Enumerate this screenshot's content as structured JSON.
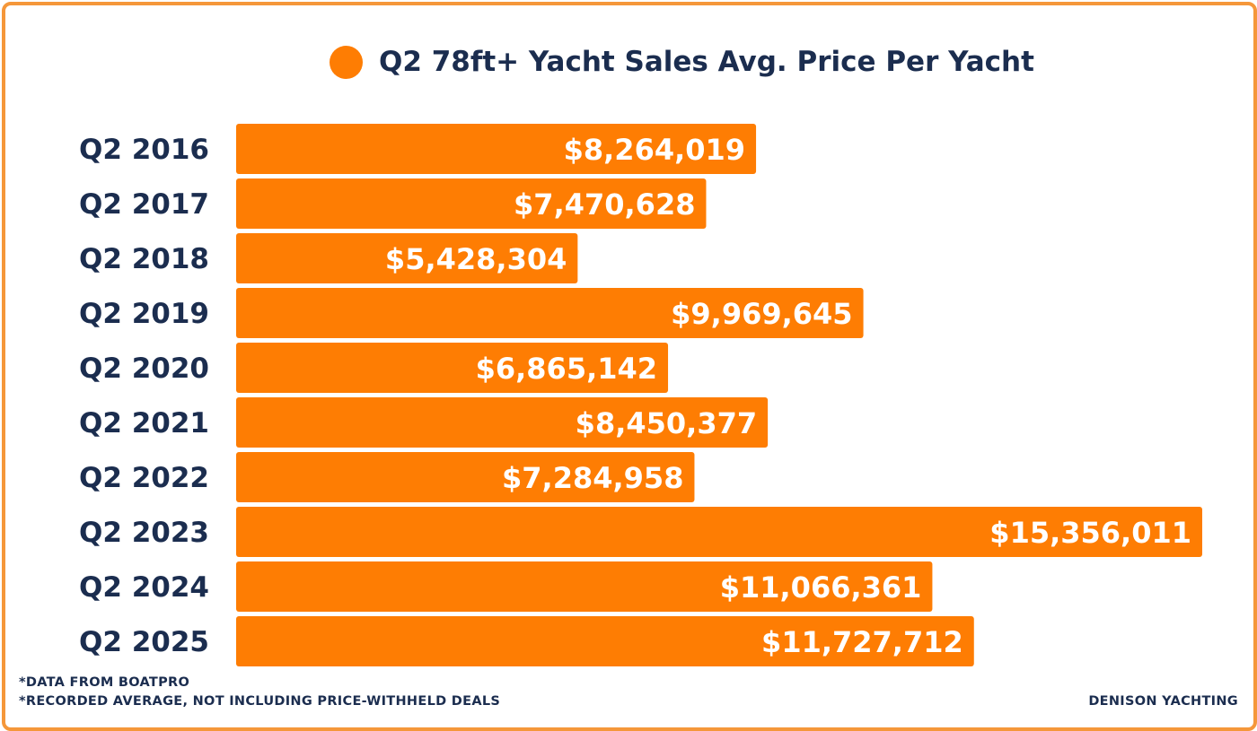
{
  "colors": {
    "bar": "#fe7d03",
    "text": "#1b2d4f",
    "border": "#f5973a"
  },
  "legend": {
    "label": "Q2 78ft+ Yacht Sales Avg. Price Per Yacht"
  },
  "footer": {
    "note1": "*DATA FROM BOATPRO",
    "note2": "*RECORDED AVERAGE, NOT INCLUDING PRICE-WITHHELD DEALS",
    "brand": "DENISON YACHTING"
  },
  "chart_data": {
    "type": "bar",
    "orientation": "horizontal",
    "categories": [
      "Q2 2016",
      "Q2 2017",
      "Q2 2018",
      "Q2 2019",
      "Q2 2020",
      "Q2 2021",
      "Q2 2022",
      "Q2 2023",
      "Q2 2024",
      "Q2 2025"
    ],
    "values": [
      8264019,
      7470628,
      5428304,
      9969645,
      6865142,
      8450377,
      7284958,
      15356011,
      11066361,
      11727712
    ],
    "value_labels": [
      "$8,264,019",
      "$7,470,628",
      "$5,428,304",
      "$9,969,645",
      "$6,865,142",
      "$8,450,377",
      "$7,284,958",
      "$15,356,011",
      "$11,066,361",
      "$11,727,712"
    ],
    "series": [
      {
        "name": "Q2 78ft+ Yacht Sales Avg. Price Per Yacht"
      }
    ],
    "xlim": [
      0,
      15356011
    ],
    "grid": false,
    "legend_position": "top"
  }
}
